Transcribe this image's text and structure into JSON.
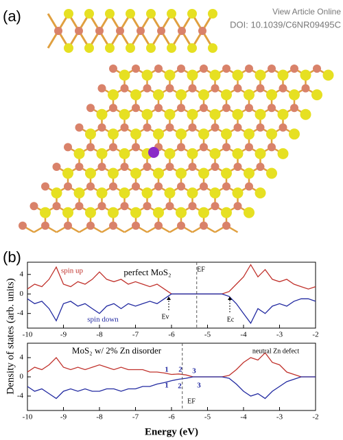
{
  "header": {
    "link": "View Article Online",
    "doi": "DOI: 10.1039/C6NR09495C"
  },
  "panel_labels": [
    "(a)",
    "(b)"
  ],
  "chart_data": [
    {
      "type": "line",
      "ylabel": "Density of states (arb. units)",
      "x": [
        -10,
        -9.8,
        -9.6,
        -9.4,
        -9.2,
        -9,
        -8.8,
        -8.6,
        -8.4,
        -8.2,
        -8,
        -7.8,
        -7.6,
        -7.4,
        -7.2,
        -7,
        -6.8,
        -6.6,
        -6.4,
        -6.2,
        -6,
        -5.8,
        -5.6,
        -5.4,
        -5.2,
        -5,
        -4.8,
        -4.6,
        -4.4,
        -4.2,
        -4,
        -3.8,
        -3.6,
        -3.4,
        -3.2,
        -3,
        -2.8,
        -2.6,
        -2.4,
        -2.2,
        -2
      ],
      "series": [
        {
          "name": "spin up",
          "color": "#c0302a",
          "values": [
            1,
            2,
            1.5,
            3,
            5.5,
            2,
            1.5,
            2.5,
            2,
            3,
            4.5,
            3,
            2.5,
            3,
            2,
            2.5,
            2,
            1.5,
            2,
            1,
            0,
            0,
            0,
            0,
            0,
            0,
            0,
            0,
            0.5,
            2,
            3.5,
            6,
            3.5,
            5,
            3,
            2.5,
            3,
            2,
            1.5,
            1,
            1.5
          ]
        },
        {
          "name": "spin down",
          "color": "#2028a0",
          "values": [
            -1,
            -2,
            -1.5,
            -3,
            -5.5,
            -2,
            -1.5,
            -2.5,
            -2,
            -3,
            -4,
            -2.5,
            -2,
            -3,
            -2,
            -2.5,
            -2,
            -1.5,
            -2,
            -1,
            0,
            0,
            0,
            0,
            0,
            0,
            0,
            0,
            -0.5,
            -2,
            -4,
            -6,
            -3,
            -4,
            -2.5,
            -2,
            -2.5,
            -1.5,
            -1,
            -1,
            -1.5
          ]
        }
      ],
      "annotations": [
        "perfect MoS₂",
        "EF",
        "Ev",
        "Ec"
      ],
      "vline": -5.3,
      "xlim": [
        -10,
        -2
      ],
      "xticks": [
        -10,
        -9,
        -8,
        -7,
        -6,
        -5,
        -4,
        -3,
        -2
      ],
      "ylim": [
        -7,
        6.5
      ],
      "yticks": [
        -4,
        0,
        4
      ]
    },
    {
      "type": "line",
      "xlabel": "Energy (eV)",
      "x": [
        -10,
        -9.8,
        -9.6,
        -9.4,
        -9.2,
        -9,
        -8.8,
        -8.6,
        -8.4,
        -8.2,
        -8,
        -7.8,
        -7.6,
        -7.4,
        -7.2,
        -7,
        -6.8,
        -6.6,
        -6.4,
        -6.2,
        -6,
        -5.8,
        -5.6,
        -5.4,
        -5.2,
        -5,
        -4.8,
        -4.6,
        -4.4,
        -4.2,
        -4,
        -3.8,
        -3.6,
        -3.4,
        -3.2,
        -3,
        -2.8,
        -2.6,
        -2.4,
        -2.2,
        -2
      ],
      "series": [
        {
          "color": "#c0302a",
          "values": [
            1,
            2,
            1.5,
            2.5,
            4,
            2,
            1.5,
            2,
            1.5,
            2,
            2.5,
            2,
            1.5,
            2,
            1.5,
            1.5,
            1.5,
            1,
            1,
            0.8,
            0.5,
            0.6,
            0.4,
            0,
            0,
            0,
            0,
            0,
            0.3,
            1.5,
            3,
            4,
            3.5,
            5,
            3,
            2.5,
            1,
            0.5,
            0,
            0,
            0
          ]
        },
        {
          "color": "#2028a0",
          "values": [
            -2,
            -3,
            -2.5,
            -3.5,
            -4.5,
            -3,
            -2.5,
            -3,
            -2.5,
            -3,
            -3,
            -2.5,
            -2.5,
            -3,
            -2.5,
            -2.5,
            -2,
            -2,
            -1.5,
            -1.2,
            -0.8,
            -0.5,
            -0.3,
            0,
            0,
            0,
            0,
            0,
            -0.3,
            -1.5,
            -3,
            -4,
            -3.5,
            -4.5,
            -3,
            -2,
            -1,
            -0.5,
            0,
            0,
            0
          ]
        }
      ],
      "annotations": [
        "MoS₂ w/ 2% Zn disorder",
        "neutral Zn defect",
        "EF",
        "1",
        "2",
        "3",
        "1",
        "2",
        "3"
      ],
      "vline": -5.7,
      "xlim": [
        -10,
        -2
      ],
      "xticks": [
        -10,
        -9,
        -8,
        -7,
        -6,
        -5,
        -4,
        -3,
        -2
      ],
      "ylim": [
        -7,
        7
      ],
      "yticks": [
        -4,
        0,
        4
      ]
    }
  ]
}
